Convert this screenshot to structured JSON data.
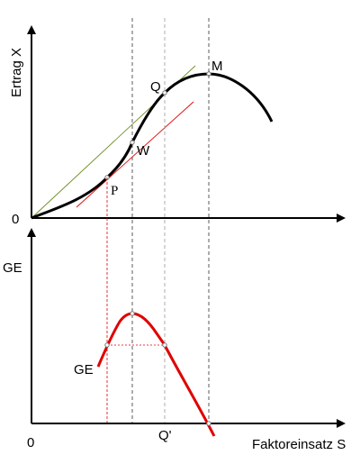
{
  "upper": {
    "y_axis_label": "Ertrag X",
    "origin_label": "0",
    "points": {
      "P": "P",
      "W": "W",
      "Q": "Q",
      "M": "M"
    }
  },
  "lower": {
    "y_axis_label": "GE",
    "curve_label": "GE",
    "origin_label": "0",
    "q_prime_label": "Q'",
    "x_axis_label": "Faktoreinsatz S"
  },
  "colors": {
    "axis": "#000000",
    "total_curve": "#000000",
    "marginal_curve": "#e00000",
    "tangent_red": "#e00000",
    "tangent_green": "#6b8e23",
    "guide_black": "#333333",
    "guide_gray": "#999999",
    "guide_red": "#e00000"
  }
}
